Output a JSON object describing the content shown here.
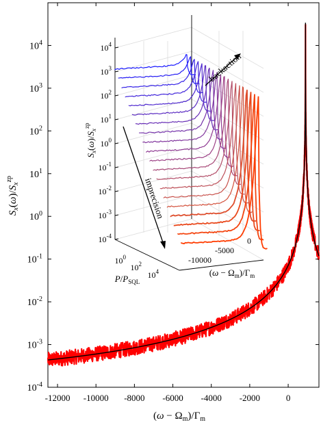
{
  "chart_data": [
    {
      "type": "line",
      "xlabel": "(ω − Ω_m)/Γ_m",
      "ylabel": "S_x(ω)/S_x^zp",
      "xlim": [
        -12500,
        1600
      ],
      "ylim_log10": [
        -4,
        5
      ],
      "x_ticks": [
        -12000,
        -10000,
        -8000,
        -6000,
        -4000,
        -2000,
        0
      ],
      "x_tick_labels": [
        "-12000",
        "-10000",
        "-8000",
        "-6000",
        "-4000",
        "-2000",
        "0"
      ],
      "y_ticks_log10": [
        -4,
        -3,
        -2,
        -1,
        0,
        1,
        2,
        3,
        4
      ],
      "y_tick_labels": [
        {
          "base": "10",
          "exp": "-4"
        },
        {
          "base": "10",
          "exp": "-3"
        },
        {
          "base": "10",
          "exp": "-2"
        },
        {
          "base": "10",
          "exp": "-1"
        },
        {
          "base": "10",
          "exp": "0"
        },
        {
          "base": "10",
          "exp": "1"
        },
        {
          "base": "10",
          "exp": "2"
        },
        {
          "base": "10",
          "exp": "3"
        },
        {
          "base": "10",
          "exp": "4"
        }
      ],
      "series": [
        {
          "role": "measured",
          "color": "#ff0000",
          "points": [
            [
              -12500,
              0.00013
            ],
            [
              -10000,
              0.00016
            ],
            [
              -8000,
              0.0002
            ],
            [
              -6000,
              0.00028
            ],
            [
              -4000,
              0.00042
            ],
            [
              -2000,
              0.0009
            ],
            [
              -1000,
              0.0025
            ],
            [
              0,
              0.02
            ],
            [
              500,
              0.3
            ],
            [
              800,
              40
            ],
            [
              900,
              40000
            ],
            [
              1000,
              40
            ],
            [
              1300,
              0.3
            ],
            [
              1600,
              0.02
            ]
          ]
        },
        {
          "role": "fit",
          "color": "#000000",
          "peak_x": 900,
          "peak_value": 40000
        }
      ],
      "grid": false
    },
    {
      "type": "line",
      "panel": "inset-3d",
      "zlabel": "S_x(ω)/S_x^zp",
      "plabel": "P/P_SQL",
      "xlabel": "(ω − Ω_m)/Γ_m",
      "z_ticks": [
        {
          "base": "10",
          "exp": "-4"
        },
        {
          "base": "10",
          "exp": "-3"
        },
        {
          "base": "10",
          "exp": "-2"
        },
        {
          "base": "10",
          "exp": "-1"
        },
        {
          "base": "10",
          "exp": "0"
        },
        {
          "base": "10",
          "exp": "1"
        },
        {
          "base": "10",
          "exp": "2"
        },
        {
          "base": "10",
          "exp": "3"
        },
        {
          "base": "10",
          "exp": "4"
        }
      ],
      "p_ticks": [
        {
          "base": "10",
          "exp": "0"
        },
        {
          "base": "10",
          "exp": "2"
        },
        {
          "base": "10",
          "exp": "4"
        }
      ],
      "x_tick_labels": [
        "-10000",
        "-5000",
        "0"
      ],
      "trace_count": 20,
      "trace_color_start": "#1a1aff",
      "trace_color_end": "#ff0000",
      "grid": true,
      "annotations": [
        "backaction",
        "imprecision"
      ]
    }
  ]
}
